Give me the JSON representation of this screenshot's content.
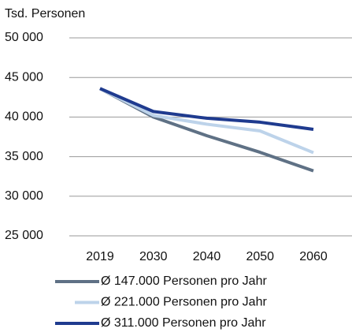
{
  "chart_data": {
    "type": "line",
    "y_axis_label": "Tsd. Personen",
    "categories": [
      "2019",
      "2030",
      "2040",
      "2050",
      "2060"
    ],
    "series": [
      {
        "name": "Ø 147.000 Personen pro Jahr",
        "color": "#5f7185",
        "values": [
          43600,
          40000,
          37650,
          35550,
          33200
        ]
      },
      {
        "name": "Ø 221.000 Personen pro Jahr",
        "color": "#bdd3ea",
        "values": [
          43600,
          40200,
          39100,
          38250,
          35500
        ]
      },
      {
        "name": "Ø 311.000 Personen pro Jahr",
        "color": "#1f3b8f",
        "values": [
          43600,
          40700,
          39850,
          39350,
          38450
        ]
      }
    ],
    "ylim": [
      25000,
      50000
    ],
    "yticks": [
      {
        "value": 25000,
        "label": "25 000"
      },
      {
        "value": 30000,
        "label": "30 000"
      },
      {
        "value": 35000,
        "label": "35 000"
      },
      {
        "value": 40000,
        "label": "40 000"
      },
      {
        "value": 45000,
        "label": "45 000"
      },
      {
        "value": 50000,
        "label": "50 000"
      }
    ],
    "grid": true
  }
}
